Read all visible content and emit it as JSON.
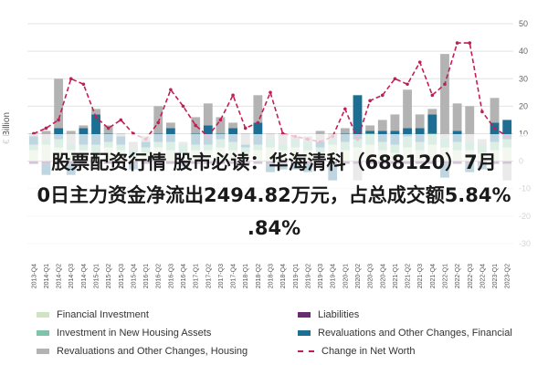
{
  "headline": {
    "line1": "股票配资行情 股市必读：华海清科（688120）7月",
    "line2": "0日主力资金净流出2494.82万元，占总成交额5.84%",
    "line3": ".84%"
  },
  "chart_data": {
    "type": "bar",
    "stacked": true,
    "ylabel": "€ Billion",
    "ylim": [
      -35,
      52
    ],
    "yticks": [
      50,
      40,
      30,
      20,
      10,
      0,
      -10,
      -20,
      -30
    ],
    "categories": [
      "2013-Q4",
      "2014-Q1",
      "2014-Q2",
      "2014-Q3",
      "2014-Q4",
      "2015-Q1",
      "2015-Q2",
      "2015-Q3",
      "2015-Q4",
      "2016-Q1",
      "2016-Q2",
      "2016-Q3",
      "2016-Q4",
      "2017-Q1",
      "2017-Q2",
      "2017-Q3",
      "2017-Q4",
      "2018-Q1",
      "2018-Q2",
      "2018-Q3",
      "2018-Q4",
      "2019-Q1",
      "2019-Q2",
      "2019-Q3",
      "2019-Q4",
      "2020-Q1",
      "2020-Q2",
      "2020-Q3",
      "2020-Q4",
      "2021-Q1",
      "2021-Q2",
      "2021-Q3",
      "2021-Q4",
      "2022-Q1",
      "2022-Q2",
      "2022-Q3",
      "2022-Q4",
      "2023-Q1",
      "2023-Q2"
    ],
    "series": [
      {
        "name": "Financial Investment",
        "color": "#cfe4c2",
        "values": [
          4,
          6,
          5,
          4,
          4,
          3,
          5,
          4,
          2,
          3,
          5,
          4,
          3,
          4,
          4,
          5,
          4,
          3,
          4,
          5,
          4,
          5,
          4,
          3,
          6,
          4,
          5,
          6,
          4,
          3,
          5,
          4,
          6,
          5,
          4,
          4,
          3,
          4,
          5
        ]
      },
      {
        "name": "Liabilities",
        "color": "#6a2c70",
        "values": [
          -1,
          -1,
          -1,
          -1,
          -1,
          -1,
          -1,
          -1,
          -1,
          -1,
          -1,
          -1,
          -1,
          -1,
          -1,
          -1,
          -1,
          -1,
          -1,
          -1,
          -1,
          -1,
          -1,
          -1,
          -1,
          -1,
          -1,
          -1,
          -1,
          -1,
          -1,
          -1,
          -1,
          -1,
          -1,
          -1,
          -1,
          -1,
          -1
        ]
      },
      {
        "name": "Investment in New Housing Assets",
        "color": "#7fc4a8",
        "values": [
          2,
          2,
          3,
          2,
          2,
          3,
          2,
          2,
          2,
          2,
          2,
          3,
          3,
          2,
          2,
          3,
          3,
          2,
          2,
          3,
          2,
          3,
          3,
          2,
          2,
          3,
          3,
          4,
          3,
          3,
          4,
          3,
          4,
          3,
          3,
          3,
          3,
          3,
          3
        ]
      },
      {
        "name": "Revaluations and Other Changes, Financial",
        "color": "#1c6e93",
        "values": [
          3,
          -4,
          4,
          -4,
          6,
          11,
          3,
          3,
          -2,
          2,
          3,
          5,
          -1,
          4,
          7,
          2,
          5,
          1,
          8,
          -3,
          -2,
          -2,
          -3,
          2,
          -6,
          3,
          16,
          1,
          4,
          5,
          3,
          5,
          7,
          -5,
          4,
          -3,
          -2,
          7,
          7
        ]
      },
      {
        "name": "Revaluations and Other Changes, Housing",
        "color": "#b3b3b3",
        "values": [
          1,
          3,
          18,
          5,
          1,
          2,
          3,
          1,
          3,
          2,
          10,
          2,
          1,
          6,
          8,
          6,
          2,
          4,
          10,
          2,
          4,
          1,
          2,
          4,
          2,
          2,
          -6,
          2,
          4,
          6,
          14,
          5,
          2,
          31,
          10,
          13,
          2,
          9,
          -6
        ]
      }
    ],
    "line": {
      "name": "Change in Net Worth",
      "color": "#c21e56",
      "values": [
        10,
        12,
        15,
        30,
        28,
        16,
        12,
        15,
        10,
        8,
        14,
        26,
        20,
        13,
        9,
        15,
        24,
        12,
        14,
        25,
        10,
        9,
        8,
        7,
        9,
        19,
        8,
        22,
        24,
        30,
        28,
        36,
        24,
        28,
        43,
        43,
        18,
        12,
        9
      ]
    }
  },
  "legend": [
    {
      "label": "Financial Investment",
      "kind": "box",
      "color": "#cfe4c2"
    },
    {
      "label": "Liabilities",
      "kind": "box",
      "color": "#6a2c70"
    },
    {
      "label": "Investment in New Housing Assets",
      "kind": "box",
      "color": "#7fc4a8"
    },
    {
      "label": "Revaluations and Other Changes, Financial",
      "kind": "box",
      "color": "#1c6e93"
    },
    {
      "label": "Revaluations and Other Changes, Housing",
      "kind": "box",
      "color": "#b3b3b3"
    },
    {
      "label": "Change in Net Worth",
      "kind": "dash",
      "color": "#c21e56"
    }
  ]
}
